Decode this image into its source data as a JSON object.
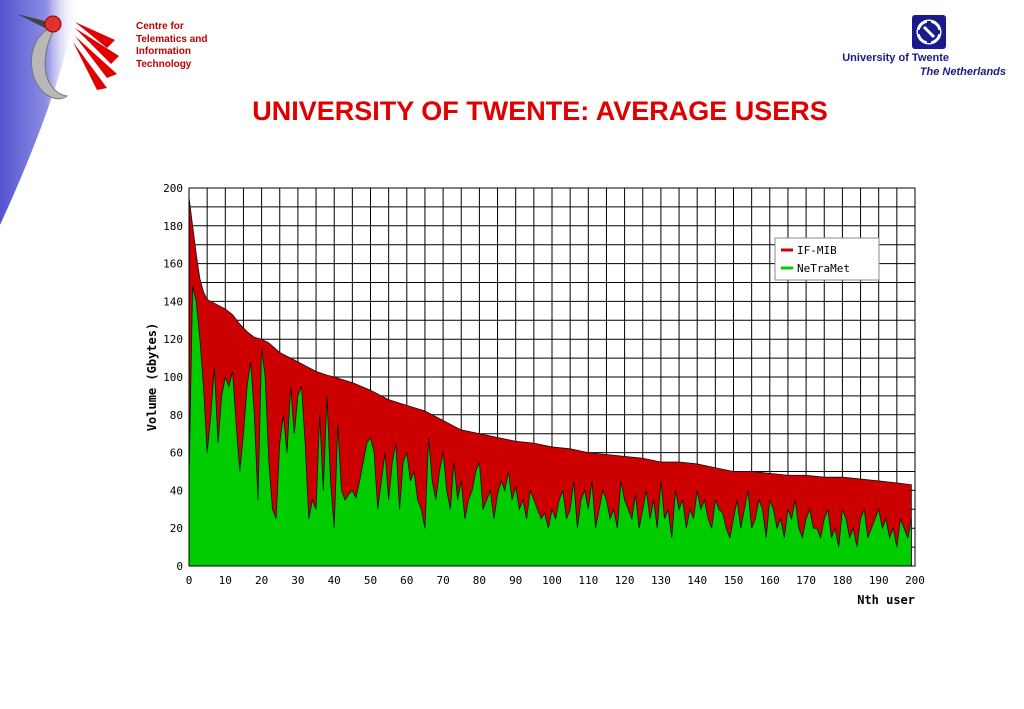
{
  "header": {
    "org_lines": [
      "Centre for",
      "Telematics and",
      "Information",
      "Technology"
    ],
    "university": "University of Twente",
    "country": "The Netherlands"
  },
  "slide": {
    "title": "UNIVERSITY OF TWENTE: AVERAGE USERS"
  },
  "colors": {
    "if_mib": "#cc0000",
    "netramet": "#00cc00",
    "title": "#e00000",
    "brand_blue": "#1a1a8c"
  },
  "chart_data": {
    "type": "area",
    "title": "",
    "xlabel": "Nth user",
    "ylabel": "Volume (Gbytes)",
    "xlim": [
      0,
      200
    ],
    "ylim": [
      0,
      200
    ],
    "xticks": [
      0,
      10,
      20,
      30,
      40,
      50,
      60,
      70,
      80,
      90,
      100,
      110,
      120,
      130,
      140,
      150,
      160,
      170,
      180,
      190,
      200
    ],
    "yticks": [
      0,
      20,
      40,
      60,
      80,
      100,
      120,
      140,
      160,
      180,
      200
    ],
    "grid": true,
    "legend_position": "top-right",
    "series": [
      {
        "name": "IF-MIB",
        "color": "#cc0000",
        "x": [
          0,
          1,
          2,
          3,
          4,
          5,
          8,
          10,
          12,
          14,
          16,
          18,
          20,
          22,
          25,
          28,
          30,
          33,
          35,
          38,
          40,
          45,
          50,
          55,
          60,
          65,
          70,
          75,
          80,
          85,
          90,
          95,
          100,
          105,
          110,
          115,
          120,
          125,
          130,
          135,
          140,
          145,
          150,
          155,
          160,
          165,
          170,
          175,
          180,
          185,
          190,
          195,
          199
        ],
        "values": [
          195,
          180,
          165,
          152,
          145,
          141,
          138,
          136,
          133,
          128,
          124,
          121,
          120,
          118,
          113,
          110,
          108,
          105,
          103,
          101,
          100,
          97,
          93,
          88,
          85,
          82,
          77,
          72,
          70,
          68,
          66,
          65,
          63,
          62,
          60,
          59,
          58,
          57,
          55,
          55,
          54,
          52,
          50,
          50,
          49,
          48,
          48,
          47,
          47,
          46,
          45,
          44,
          43
        ]
      },
      {
        "name": "NeTraMet",
        "color": "#00cc00",
        "x": [
          0,
          1,
          2,
          3,
          4,
          5,
          6,
          7,
          8,
          9,
          10,
          11,
          12,
          13,
          14,
          15,
          16,
          17,
          18,
          19,
          20,
          21,
          22,
          23,
          24,
          25,
          26,
          27,
          28,
          29,
          30,
          31,
          32,
          33,
          34,
          35,
          36,
          37,
          38,
          39,
          40,
          41,
          42,
          43,
          44,
          45,
          46,
          47,
          48,
          49,
          50,
          51,
          52,
          53,
          54,
          55,
          56,
          57,
          58,
          59,
          60,
          61,
          62,
          63,
          64,
          65,
          66,
          67,
          68,
          69,
          70,
          71,
          72,
          73,
          74,
          75,
          76,
          77,
          78,
          79,
          80,
          81,
          82,
          83,
          84,
          85,
          86,
          87,
          88,
          89,
          90,
          91,
          92,
          93,
          94,
          95,
          96,
          97,
          98,
          99,
          100,
          101,
          102,
          103,
          104,
          105,
          106,
          107,
          108,
          109,
          110,
          111,
          112,
          113,
          114,
          115,
          116,
          117,
          118,
          119,
          120,
          121,
          122,
          123,
          124,
          125,
          126,
          127,
          128,
          129,
          130,
          131,
          132,
          133,
          134,
          135,
          136,
          137,
          138,
          139,
          140,
          141,
          142,
          143,
          144,
          145,
          146,
          147,
          148,
          149,
          150,
          151,
          152,
          153,
          154,
          155,
          156,
          157,
          158,
          159,
          160,
          161,
          162,
          163,
          164,
          165,
          166,
          167,
          168,
          169,
          170,
          171,
          172,
          173,
          174,
          175,
          176,
          177,
          178,
          179,
          180,
          181,
          182,
          183,
          184,
          185,
          186,
          187,
          188,
          189,
          190,
          191,
          192,
          193,
          194,
          195,
          196,
          197,
          198,
          199
        ],
        "values": [
          45,
          148,
          140,
          120,
          95,
          60,
          80,
          105,
          65,
          90,
          100,
          95,
          103,
          75,
          50,
          70,
          95,
          108,
          80,
          35,
          115,
          100,
          55,
          30,
          25,
          65,
          80,
          60,
          95,
          70,
          90,
          95,
          65,
          25,
          35,
          30,
          80,
          40,
          90,
          45,
          20,
          75,
          40,
          35,
          38,
          40,
          36,
          45,
          55,
          65,
          68,
          60,
          30,
          45,
          60,
          35,
          55,
          65,
          30,
          55,
          60,
          45,
          50,
          35,
          30,
          20,
          68,
          45,
          35,
          50,
          60,
          40,
          30,
          55,
          35,
          45,
          25,
          35,
          40,
          50,
          55,
          30,
          35,
          40,
          25,
          38,
          45,
          40,
          50,
          35,
          42,
          30,
          35,
          25,
          40,
          35,
          30,
          25,
          28,
          20,
          30,
          25,
          35,
          40,
          25,
          30,
          45,
          20,
          35,
          40,
          30,
          45,
          20,
          30,
          40,
          35,
          25,
          30,
          20,
          45,
          35,
          30,
          25,
          38,
          20,
          30,
          40,
          25,
          35,
          20,
          45,
          25,
          30,
          15,
          40,
          30,
          35,
          20,
          30,
          25,
          40,
          30,
          35,
          25,
          20,
          35,
          30,
          28,
          20,
          15,
          25,
          35,
          20,
          30,
          40,
          20,
          25,
          35,
          30,
          15,
          35,
          30,
          20,
          25,
          15,
          30,
          25,
          35,
          20,
          15,
          25,
          30,
          20,
          20,
          15,
          25,
          30,
          15,
          20,
          10,
          30,
          25,
          15,
          20,
          10,
          25,
          30,
          15,
          20,
          25,
          30,
          20,
          25,
          15,
          20,
          10,
          25,
          20,
          15,
          25
        ]
      }
    ]
  }
}
